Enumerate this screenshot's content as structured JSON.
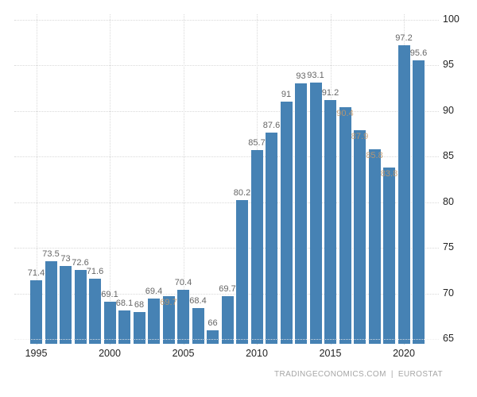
{
  "chart_data": {
    "type": "bar",
    "title": "",
    "xlabel": "",
    "ylabel": "",
    "years": [
      1995,
      1996,
      1997,
      1998,
      1999,
      2000,
      2001,
      2002,
      2003,
      2004,
      2005,
      2006,
      2007,
      2008,
      2009,
      2010,
      2011,
      2012,
      2013,
      2014,
      2015,
      2016,
      2017,
      2018,
      2019,
      2020,
      2021
    ],
    "values": [
      71.4,
      73.5,
      73,
      72.6,
      71.6,
      69.1,
      68.1,
      68,
      69.4,
      69.7,
      70.4,
      68.4,
      66,
      69.7,
      80.2,
      85.7,
      87.6,
      91,
      93,
      93.1,
      91.2,
      90.4,
      87.9,
      85.8,
      83.8,
      97.2,
      95.6
    ],
    "faded_label_years": [
      2004,
      2016,
      2017,
      2018,
      2019
    ],
    "ylim": [
      65,
      100
    ],
    "yticks": [
      65,
      70,
      75,
      80,
      85,
      90,
      95,
      100
    ],
    "xticks": [
      1995,
      2000,
      2005,
      2010,
      2015,
      2020
    ],
    "grid": "dotted",
    "legend": "none",
    "bar_color": "#4682b4",
    "label_color": "#666666",
    "faded_label_color": "#c1986c",
    "axis_text_color": "#222222",
    "gridline_color": "#d9d9d9"
  },
  "footer": {
    "source": "TRADINGECONOMICS.COM",
    "separator": "|",
    "provider": "EUROSTAT"
  }
}
